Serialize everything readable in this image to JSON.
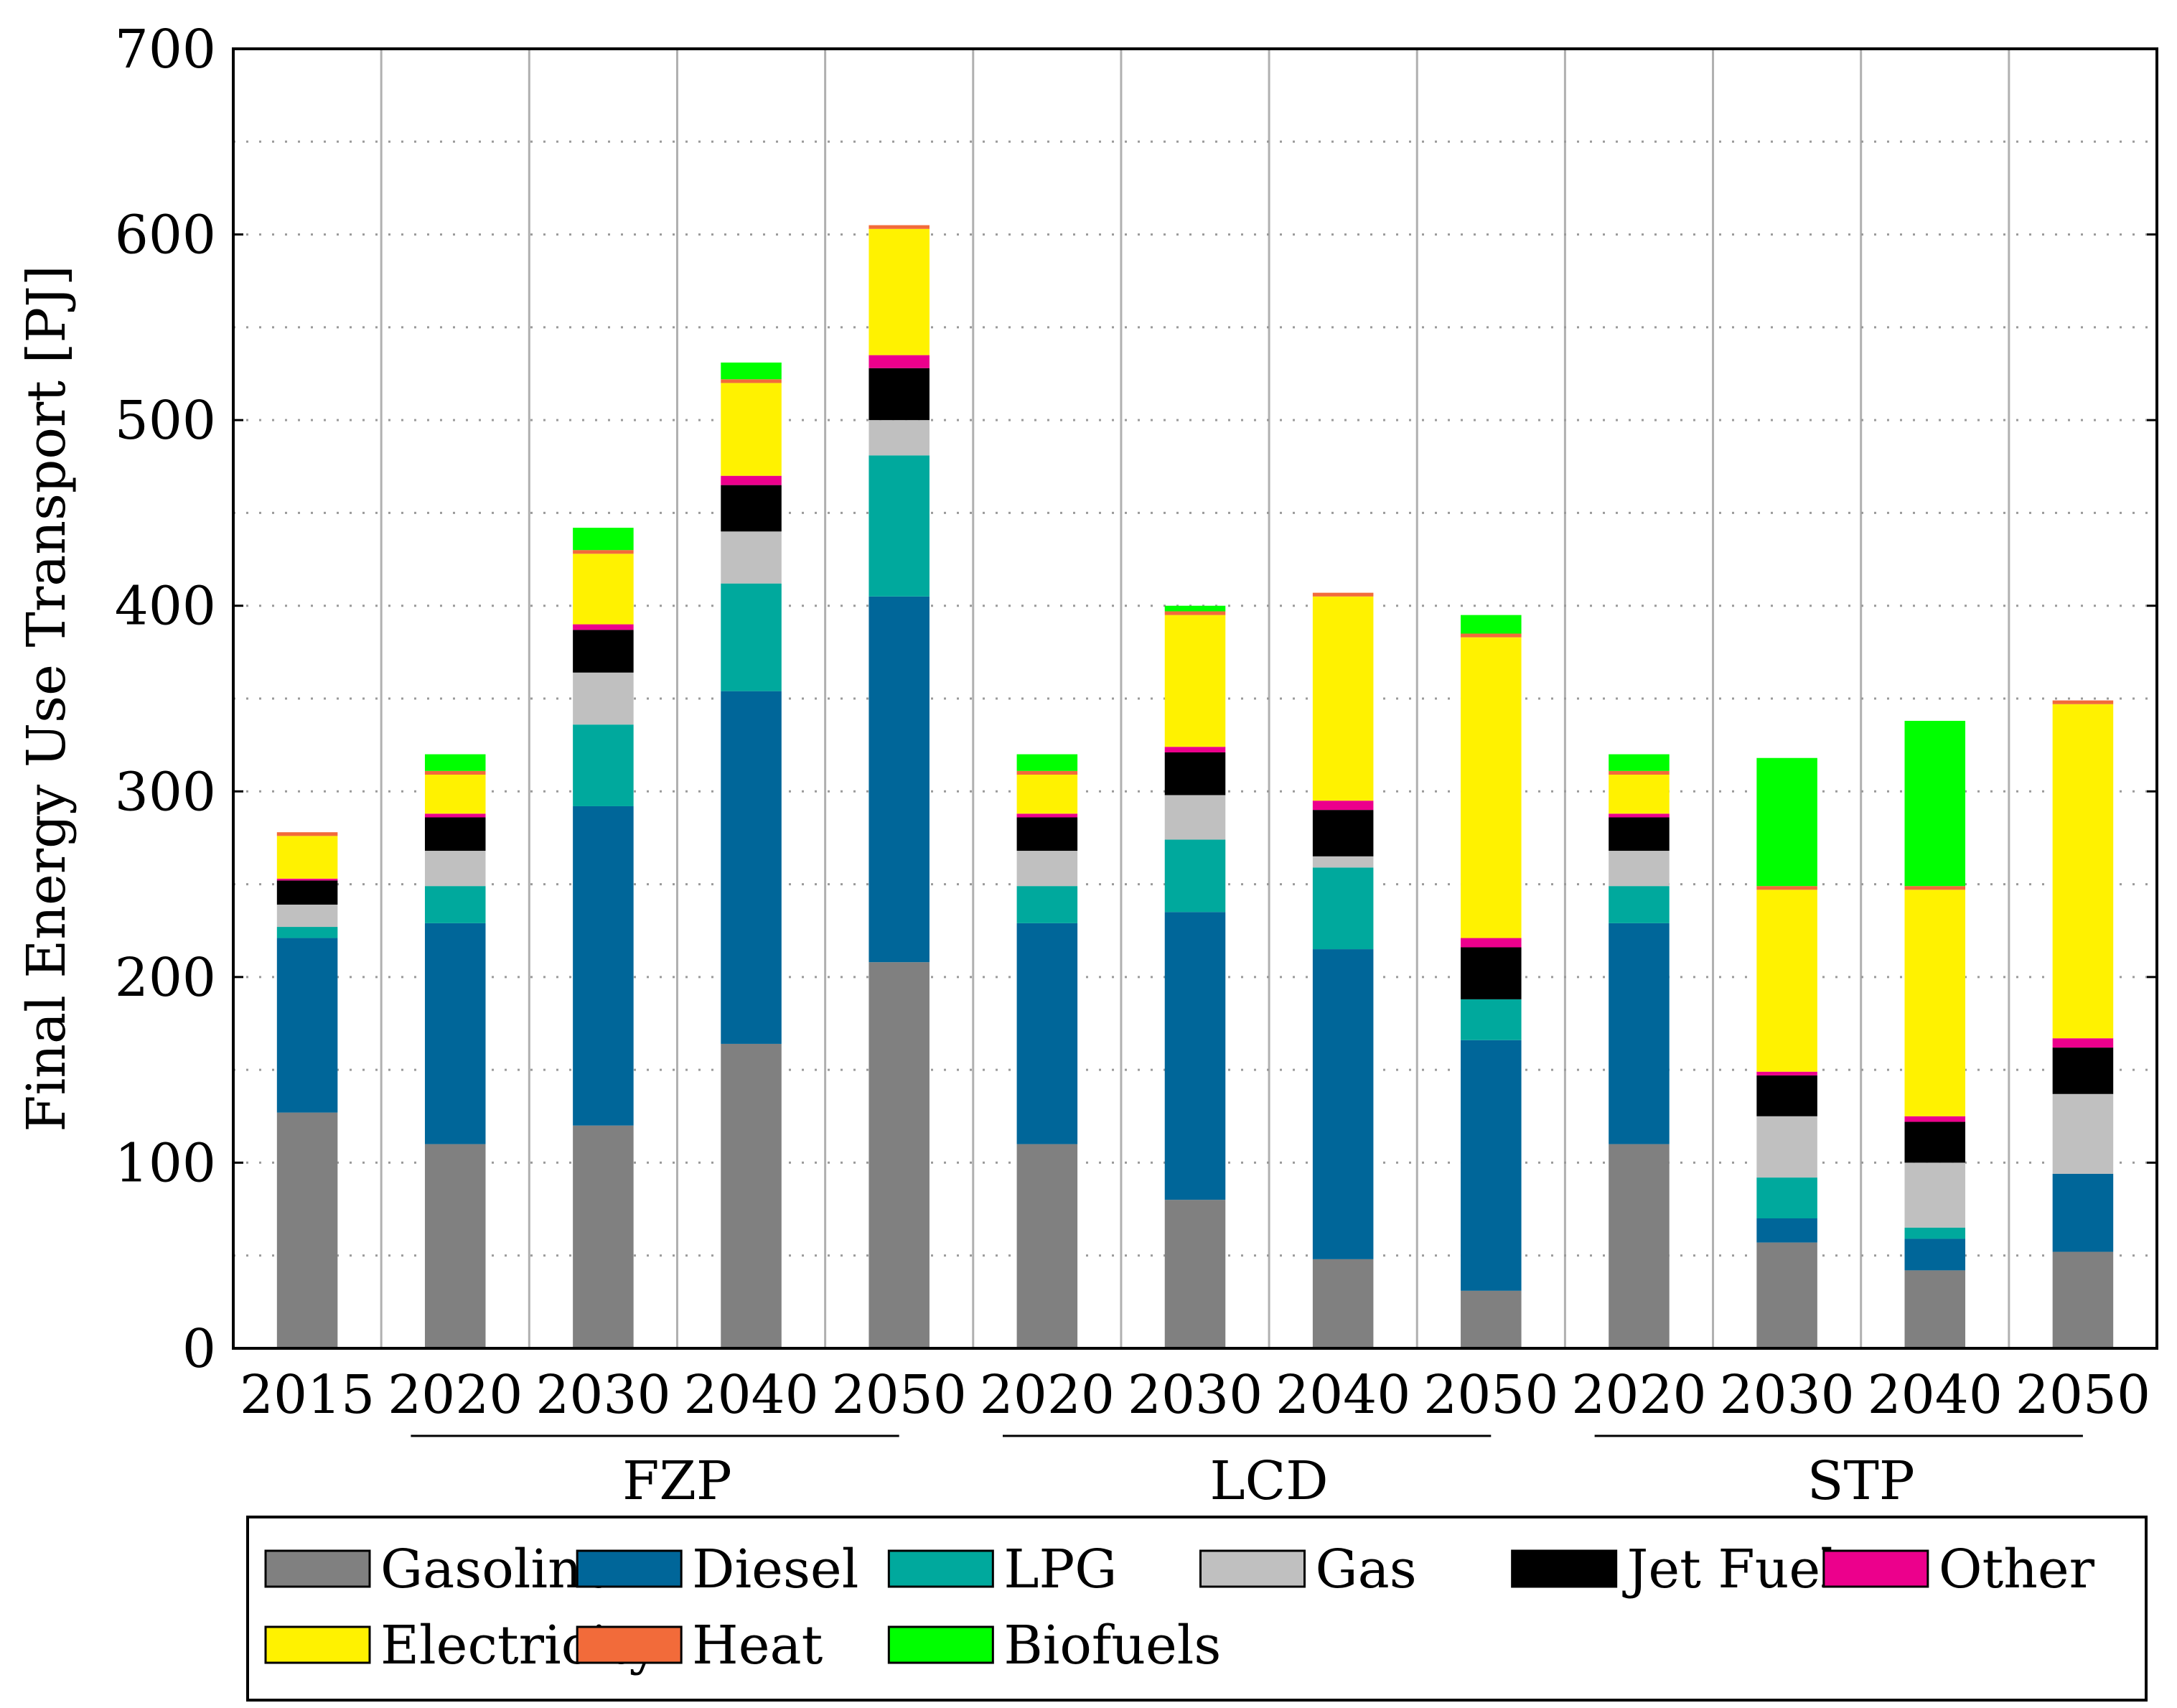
{
  "chart_data": {
    "type": "bar",
    "stacked": true,
    "title": "",
    "xlabel": "",
    "ylabel": "Final Energy Use Transport [PJ]",
    "ylim": [
      0,
      700
    ],
    "yticks": [
      0,
      100,
      200,
      300,
      400,
      500,
      600,
      700
    ],
    "grid": "dotted horizontal + vertical separators",
    "legend_position": "bottom",
    "categories": [
      "2015",
      "2020",
      "2030",
      "2040",
      "2050",
      "2020",
      "2030",
      "2040",
      "2050",
      "2020",
      "2030",
      "2040",
      "2050"
    ],
    "groups": [
      {
        "label": "FZP",
        "from": 1,
        "to": 4
      },
      {
        "label": "LCD",
        "from": 5,
        "to": 8
      },
      {
        "label": "STP",
        "from": 9,
        "to": 12
      }
    ],
    "series": [
      {
        "name": "Gasoline",
        "color": "#808080",
        "values": [
          127,
          110,
          120,
          164,
          208,
          110,
          80,
          48,
          31,
          110,
          57,
          42,
          52
        ]
      },
      {
        "name": "Diesel",
        "color": "#006699",
        "values": [
          94,
          119,
          172,
          190,
          197,
          119,
          155,
          167,
          135,
          119,
          13,
          17,
          42
        ]
      },
      {
        "name": "LPG",
        "color": "#00A99D",
        "values": [
          6,
          20,
          44,
          58,
          76,
          20,
          39,
          44,
          22,
          20,
          22,
          6,
          0
        ]
      },
      {
        "name": "Gas",
        "color": "#C0C0C0",
        "values": [
          12,
          19,
          28,
          28,
          19,
          19,
          24,
          6,
          0,
          19,
          33,
          35,
          43
        ]
      },
      {
        "name": "Jet Fuel",
        "color": "#000000",
        "values": [
          13,
          18,
          23,
          25,
          28,
          18,
          23,
          25,
          28,
          18,
          22,
          22,
          25
        ]
      },
      {
        "name": "Other",
        "color": "#EC008C",
        "values": [
          1,
          2,
          3,
          5,
          7,
          2,
          3,
          5,
          5,
          2,
          2,
          3,
          5
        ]
      },
      {
        "name": "Electricity",
        "color": "#FFF200",
        "values": [
          23,
          21,
          38,
          50,
          68,
          21,
          71,
          110,
          162,
          21,
          98,
          122,
          180
        ]
      },
      {
        "name": "Heat",
        "color": "#F26B3A",
        "values": [
          2,
          2,
          2,
          2,
          2,
          2,
          2,
          2,
          2,
          2,
          2,
          2,
          2
        ]
      },
      {
        "name": "Biofuels",
        "color": "#00FF00",
        "values": [
          0,
          9,
          12,
          9,
          0,
          9,
          3,
          0,
          10,
          9,
          69,
          89,
          0
        ]
      }
    ]
  }
}
